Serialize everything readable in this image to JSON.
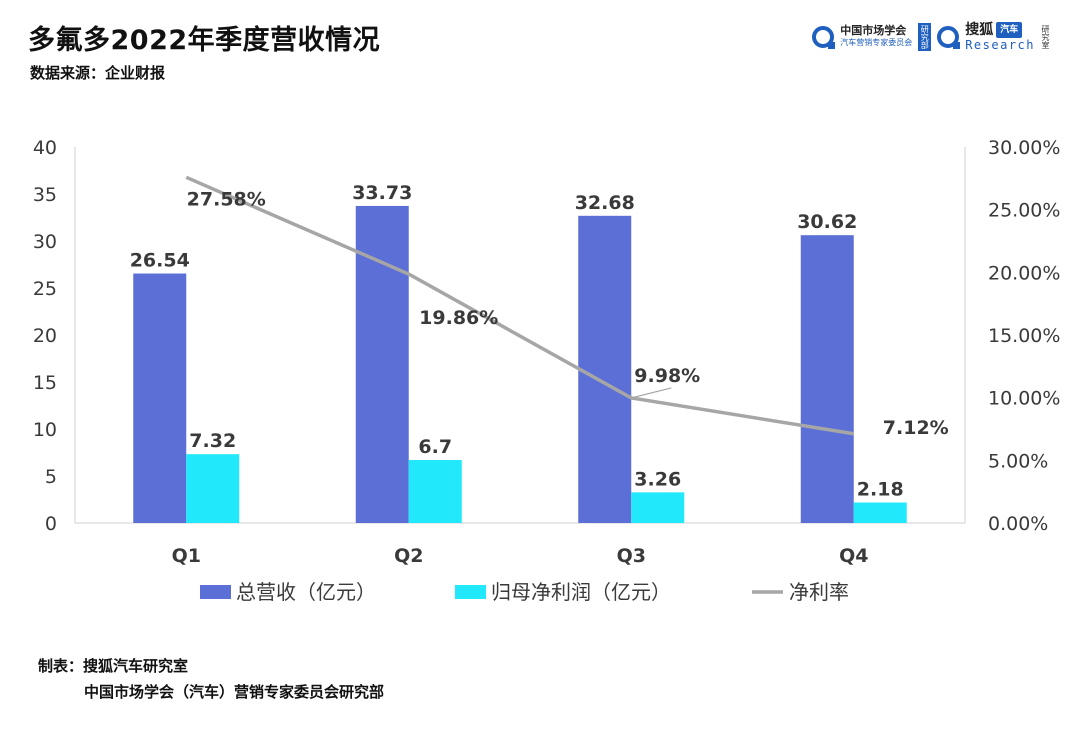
{
  "header": {
    "title": "多氟多2022年季度营收情况",
    "source": "数据来源：企业财报"
  },
  "logos": {
    "a_big": "中国市场学会",
    "a_small": "汽车营销专家委员会",
    "a_badge": "研究部",
    "b_top": "搜狐",
    "b_pill": "汽车",
    "b_bottom": "Research",
    "b_lab": "研究室"
  },
  "colors": {
    "revenue": "#5b6fd6",
    "profit": "#22e8fc",
    "margin": "#a6a6a6",
    "axis_text": "#3a3a3a"
  },
  "chart_data": {
    "type": "bar",
    "categories": [
      "Q1",
      "Q2",
      "Q3",
      "Q4"
    ],
    "series": [
      {
        "name": "总营收（亿元）",
        "kind": "bar",
        "axis": "left",
        "values": [
          26.54,
          33.73,
          32.68,
          30.62
        ],
        "labels": [
          "26.54",
          "33.73",
          "32.68",
          "30.62"
        ]
      },
      {
        "name": "归母净利润（亿元）",
        "kind": "bar",
        "axis": "left",
        "values": [
          7.32,
          6.7,
          3.26,
          2.18
        ],
        "labels": [
          "7.32",
          "6.7",
          "3.26",
          "2.18"
        ]
      },
      {
        "name": "净利率",
        "kind": "line",
        "axis": "right",
        "values": [
          27.58,
          19.86,
          9.98,
          7.12
        ],
        "labels": [
          "27.58%",
          "19.86%",
          "9.98%",
          "7.12%"
        ]
      }
    ],
    "y_left": {
      "min": 0,
      "max": 40,
      "ticks": [
        "0",
        "5",
        "10",
        "15",
        "20",
        "25",
        "30",
        "35",
        "40"
      ]
    },
    "y_right": {
      "min": 0,
      "max": 30,
      "ticks": [
        "0.00%",
        "5.00%",
        "10.00%",
        "15.00%",
        "20.00%",
        "25.00%",
        "30.00%"
      ]
    },
    "legend_position": "bottom",
    "grid": false
  },
  "footer": {
    "line1": "制表：搜狐汽车研究室",
    "line2": "中国市场学会（汽车）营销专家委员会研究部"
  }
}
